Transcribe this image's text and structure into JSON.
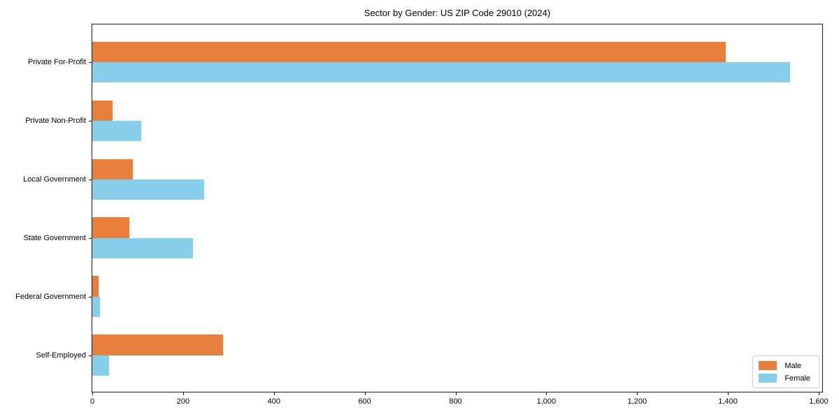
{
  "title": "Sector by Gender: US ZIP Code 29010 (2024)",
  "colors": {
    "male": "#e87e3c",
    "female": "#87ceeb",
    "spine": "#1a1a1a",
    "legend_border": "#cccccc",
    "background": "#ffffff"
  },
  "chart_data": {
    "type": "bar",
    "orientation": "horizontal",
    "title": "Sector by Gender: US ZIP Code 29010 (2024)",
    "xlabel": "",
    "ylabel": "",
    "categories": [
      "Private For-Profit",
      "Private Non-Profit",
      "Local Government",
      "State Government",
      "Federal Government",
      "Self-Employed"
    ],
    "series": [
      {
        "name": "Male",
        "color": "#e87e3c",
        "values": [
          1395,
          44,
          90,
          81,
          14,
          288
        ]
      },
      {
        "name": "Female",
        "color": "#87ceeb",
        "values": [
          1537,
          107,
          246,
          222,
          17,
          37
        ]
      }
    ],
    "xlim": [
      0,
      1611
    ],
    "x_ticks": [
      0,
      200,
      400,
      600,
      800,
      1000,
      1200,
      1400,
      1600
    ],
    "x_tick_labels": [
      "0",
      "200",
      "400",
      "600",
      "800",
      "1,000",
      "1,200",
      "1,400",
      "1,600"
    ],
    "grid": false,
    "legend_position": "lower right"
  },
  "legend": {
    "items": [
      {
        "label": "Male"
      },
      {
        "label": "Female"
      }
    ]
  }
}
